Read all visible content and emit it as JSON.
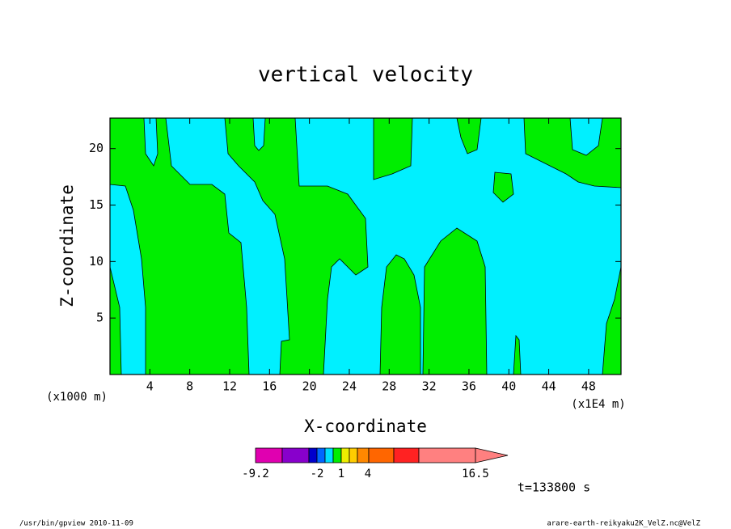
{
  "chart_data": {
    "type": "contour",
    "title": "vertical velocity",
    "x_label": "X-coordinate",
    "y_label": "Z-coordinate",
    "x_unit_left": "(x1000 m)",
    "x_unit_right": "(x1E4 m)",
    "xlim": [
      0,
      51.25
    ],
    "xticks": [
      4,
      8,
      12,
      16,
      20,
      24,
      28,
      32,
      36,
      40,
      44,
      48
    ],
    "ylim": [
      0,
      22.7
    ],
    "yticks": [
      5,
      10,
      15,
      20
    ],
    "colors": {
      "negative": "#00f0ff",
      "positive": "#00ee00"
    },
    "colorbar": {
      "colors": [
        "#e000b0",
        "#8800cc",
        "#0000cc",
        "#0066ff",
        "#00ddff",
        "#00ee00",
        "#eeee00",
        "#ffcc00",
        "#ff8800",
        "#ff6600",
        "#ff2222",
        "#ff8080"
      ],
      "ticks": [
        -9.2,
        -2,
        1,
        4,
        16.5
      ]
    },
    "annotation": "t=133800 s"
  },
  "footer": {
    "left": "/usr/bin/gpview  2010-11-09",
    "right": "arare-earth-reikyaku2K_VelZ.nc@VelZ"
  }
}
